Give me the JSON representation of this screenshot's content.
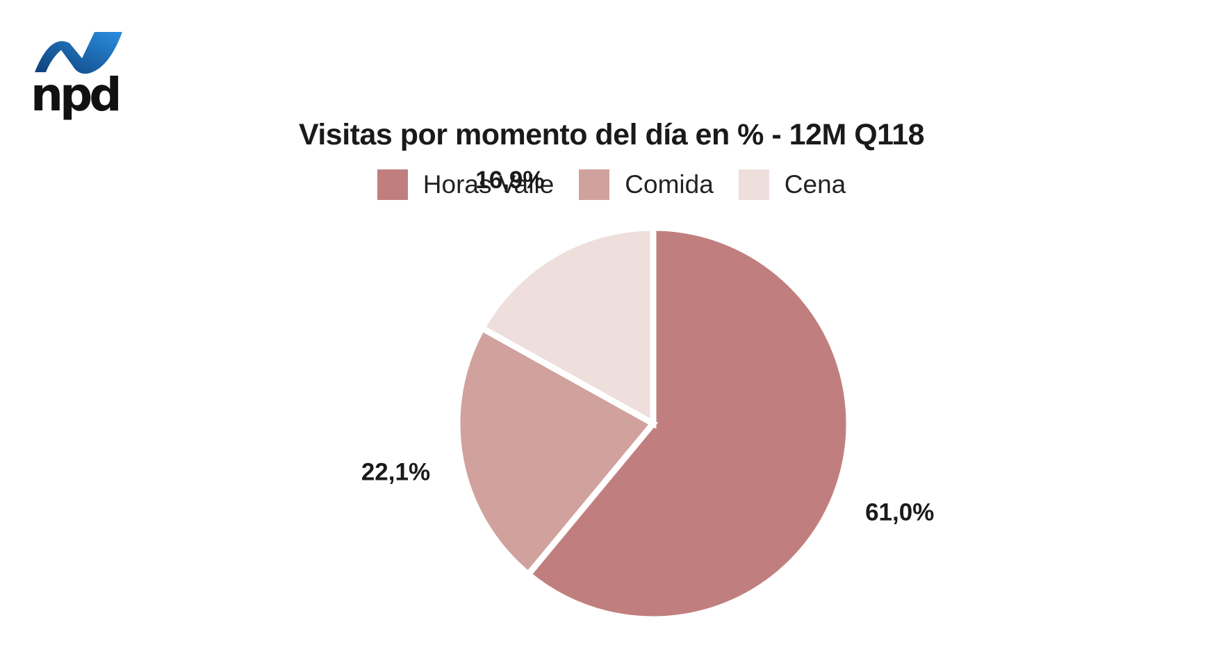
{
  "logo": {
    "text": "npd",
    "icon": "npd-logo-icon",
    "accent": "#1b78c4"
  },
  "chart_data": {
    "type": "pie",
    "title": "Visitas por momento del día en % - 12M Q118",
    "categories": [
      "Horas Valle",
      "Comida",
      "Cena"
    ],
    "values": [
      61.0,
      22.1,
      16.9
    ],
    "value_labels": [
      "61,0%",
      "22,1%",
      "16,9%"
    ],
    "colors": [
      "#c07f7e",
      "#d0a19d",
      "#eedfdc"
    ],
    "legend_position": "top"
  }
}
